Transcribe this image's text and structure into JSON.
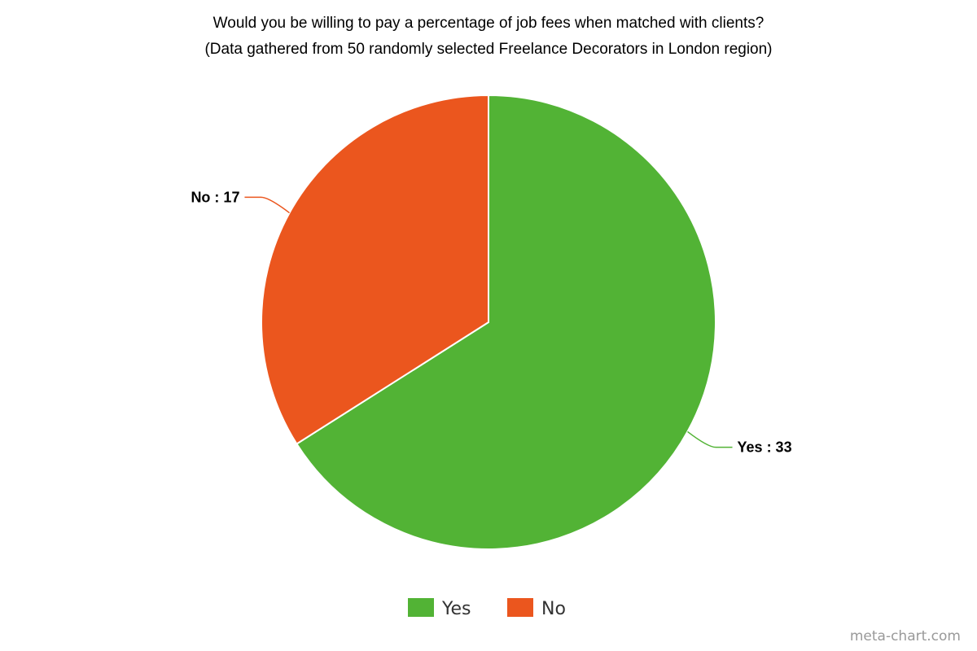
{
  "chart_data": {
    "type": "pie",
    "title": "Would you be willing to pay a percentage of job fees when matched with clients?",
    "subtitle": "(Data gathered from 50 randomly selected Freelance Decorators in London region)",
    "slices": [
      {
        "label": "Yes",
        "value": 33,
        "display": "Yes : 33",
        "color": "#52b335"
      },
      {
        "label": "No",
        "value": 17,
        "display": "No : 17",
        "color": "#eb561e"
      }
    ],
    "legend": {
      "position": "bottom-center",
      "items": [
        "Yes",
        "No"
      ]
    }
  },
  "watermark": "meta-chart.com"
}
